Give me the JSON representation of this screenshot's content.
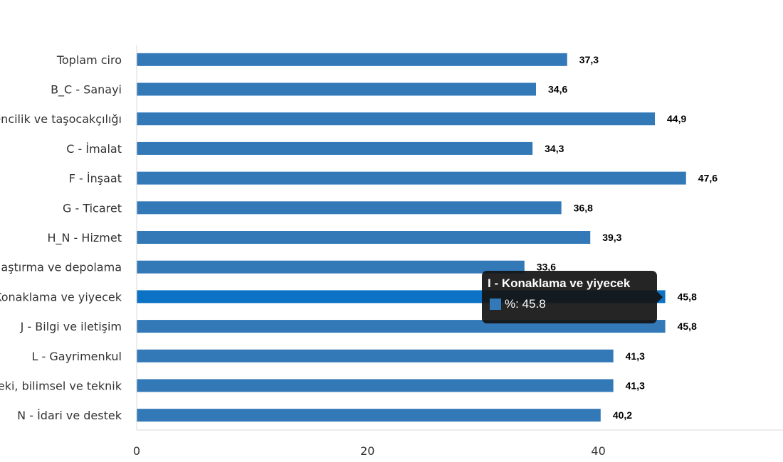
{
  "chart_data": {
    "type": "bar",
    "orientation": "horizontal",
    "categories": [
      "Toplam ciro",
      "B_C - Sanayi",
      "B - Madencilik ve taşocakçılığı",
      "C - İmalat",
      "F - İnşaat",
      "G - Ticaret",
      "H_N - Hizmet",
      "H - Ulaştırma ve depolama",
      "I - Konaklama ve yiyecek",
      "J - Bilgi ve iletişim",
      "L - Gayrimenkul",
      "M - Mesleki, bilimsel ve teknik",
      "N - İdari ve destek"
    ],
    "values": [
      37.3,
      34.6,
      44.9,
      34.3,
      47.6,
      36.8,
      39.3,
      33.6,
      45.8,
      45.8,
      41.3,
      41.3,
      40.2
    ],
    "value_labels": [
      "37,3",
      "34,6",
      "44,9",
      "34,3",
      "47,6",
      "36,8",
      "39,3",
      "33,6",
      "45,8",
      "45,8",
      "41,3",
      "41,3",
      "40,2"
    ],
    "xlim": [
      0,
      56
    ],
    "x_ticks": [
      0,
      20,
      40
    ],
    "x_tick_labels": [
      "0",
      "20",
      "40"
    ],
    "grid": false,
    "highlighted_index": 8,
    "colors": {
      "bar": "#3379b8",
      "bar_highlight": "#0c72c6",
      "axis": "#d8d8d8"
    }
  },
  "tooltip": {
    "title": "I - Konaklama ve yiyecek",
    "series_label": "%: 45.8",
    "swatch_color": "#3379b8"
  }
}
